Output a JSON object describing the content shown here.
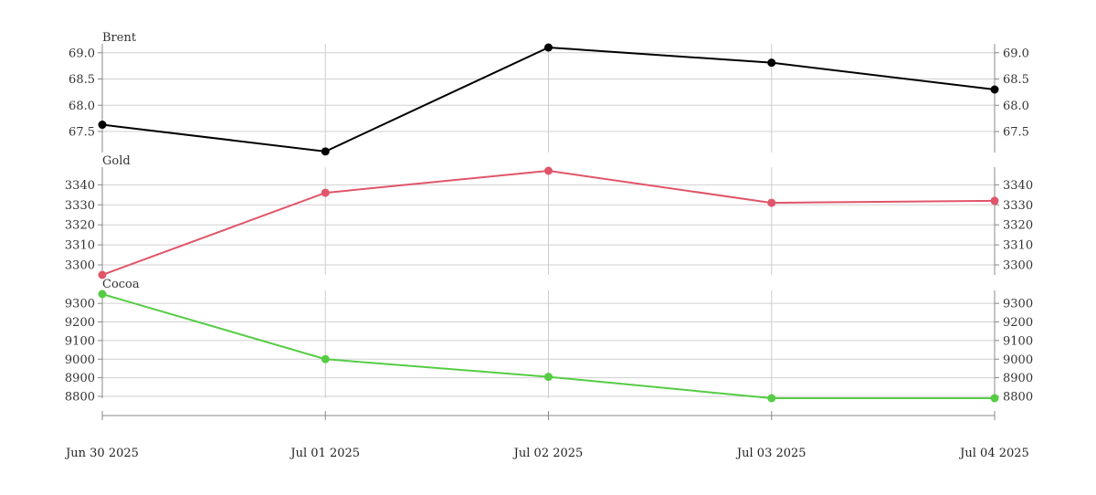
{
  "chart_data": {
    "type": "line",
    "x": [
      "Jun 30 2025",
      "Jul 01 2025",
      "Jul 02 2025",
      "Jul 03 2025",
      "Jul 04 2025"
    ],
    "x_tick_labels": [
      "Jun 30 2025",
      "Jul 01 2025",
      "Jul 02 2025",
      "Jul 03 2025",
      "Jul 04 2025"
    ],
    "grid": true,
    "shared_x_axis": true,
    "panels": [
      {
        "title": "Brent",
        "color": "#000000",
        "values": [
          67.63,
          67.12,
          69.1,
          68.81,
          68.3
        ],
        "ylim": [
          67.1,
          69.1
        ],
        "yticks": [
          67.5,
          68.0,
          68.5,
          69.0
        ],
        "ytick_labels": [
          "67.5",
          "68.0",
          "68.5",
          "69.0"
        ]
      },
      {
        "title": "Gold",
        "color": "#e05569",
        "values": [
          3295,
          3336,
          3347,
          3331,
          3332
        ],
        "ylim": [
          3295,
          3347
        ],
        "yticks": [
          3300,
          3310,
          3320,
          3330,
          3340
        ],
        "ytick_labels": [
          "3300",
          "3310",
          "3320",
          "3330",
          "3340"
        ]
      },
      {
        "title": "Cocoa",
        "color": "#55cc44",
        "values": [
          9350,
          9000,
          8905,
          8790,
          8790
        ],
        "ylim": [
          8790,
          9350
        ],
        "yticks": [
          8800,
          8900,
          9000,
          9100,
          9200,
          9300
        ],
        "ytick_labels": [
          "8800",
          "8900",
          "9000",
          "9100",
          "9200",
          "9300"
        ]
      }
    ]
  }
}
